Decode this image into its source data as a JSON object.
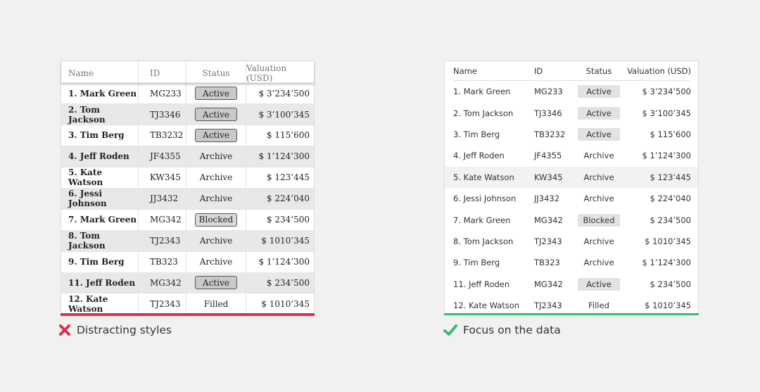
{
  "headers": [
    "Name",
    "ID",
    "Status",
    "Valuation (USD)"
  ],
  "rows": [
    {
      "name": "1. Mark Green",
      "id": "MG233",
      "status": "Active",
      "value": "$ 3’234’500",
      "badge": true
    },
    {
      "name": "2. Tom Jackson",
      "id": "TJ3346",
      "status": "Active",
      "value": "$ 3’100’345",
      "badge": true
    },
    {
      "name": "3. Tim Berg",
      "id": "TB3232",
      "status": "Active",
      "value": "$ 115’600",
      "badge": true
    },
    {
      "name": "4. Jeff Roden",
      "id": "JF4355",
      "status": "Archive",
      "value": "$ 1’124’300",
      "badge": false
    },
    {
      "name": "5. Kate Watson",
      "id": "KW345",
      "status": "Archive",
      "value": "$ 123’445",
      "badge": false
    },
    {
      "name": "6. Jessi Johnson",
      "id": "JJ3432",
      "status": "Archive",
      "value": "$ 224’040",
      "badge": false
    },
    {
      "name": "7. Mark Green",
      "id": "MG342",
      "status": "Blocked",
      "value": "$ 234’500",
      "badge": true
    },
    {
      "name": "8. Tom Jackson",
      "id": "TJ2343",
      "status": "Archive",
      "value": "$ 1010’345",
      "badge": false
    },
    {
      "name": "9. Tim Berg",
      "id": "TB323",
      "status": "Archive",
      "value": "$ 1’124’300",
      "badge": false
    },
    {
      "name": "11. Jeff Roden",
      "id": "MG342",
      "status": "Active",
      "value": "$ 234’500",
      "badge": true
    },
    {
      "name": "12. Kate Watson",
      "id": "TJ2343",
      "status": "Filled",
      "value": "$ 1010’345",
      "badge": false
    }
  ],
  "right_highlight_row": 5,
  "captions": {
    "bad": "Distracting styles",
    "good": "Focus on the data"
  },
  "icons": {
    "bad": "x-icon",
    "good": "check-icon"
  },
  "colors": {
    "bad": "#d9304f",
    "good": "#3cba77"
  }
}
